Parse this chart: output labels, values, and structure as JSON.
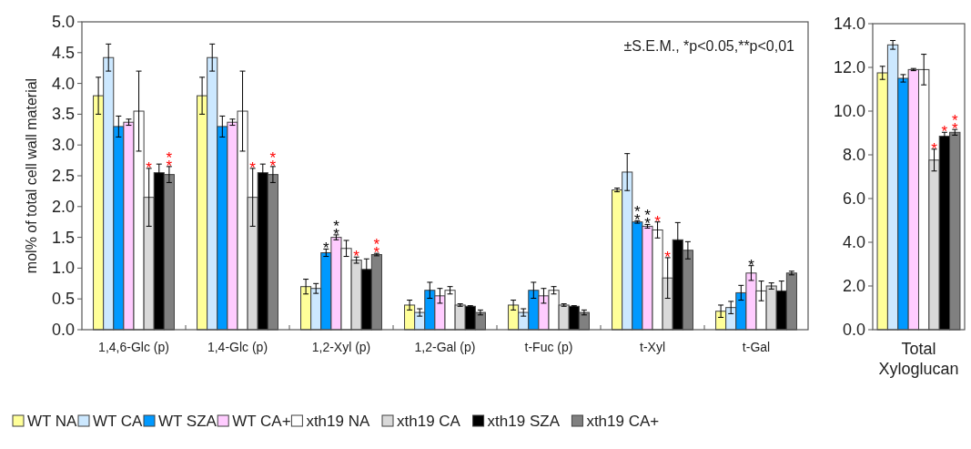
{
  "chart_data": [
    {
      "type": "bar",
      "ylabel": "mol% of total cell wall material",
      "categories": [
        "1,4,6-Glc (p)",
        "1,4-Glc (p)",
        "1,2-Xyl (p)",
        "1,2-Gal (p)",
        "t-Fuc (p)",
        "t-Xyl",
        "t-Gal"
      ],
      "ylim": [
        0,
        5
      ],
      "yticks": [
        {
          "value": 0,
          "label": "0.0"
        },
        {
          "value": 0.5,
          "label": "0.5"
        },
        {
          "value": 1,
          "label": "1.0"
        },
        {
          "value": 1.5,
          "label": "1.5"
        },
        {
          "value": 2,
          "label": "2.0"
        },
        {
          "value": 2.5,
          "label": "2.5"
        },
        {
          "value": 3,
          "label": "3.0"
        },
        {
          "value": 3.5,
          "label": "3.5"
        },
        {
          "value": 4,
          "label": "4.0"
        },
        {
          "value": 4.5,
          "label": "4.5"
        },
        {
          "value": 5,
          "label": "5.0"
        }
      ],
      "legend": "bottom",
      "grid": false,
      "annotations": [
        "±S.E.M., *p<0.05,**p<0,01"
      ],
      "series": [
        {
          "name": "WT NA",
          "color": "#ffff99",
          "values": [
            3.8,
            3.8,
            0.7,
            0.4,
            0.4,
            2.27,
            0.3
          ],
          "errors": [
            0.3,
            0.3,
            0.12,
            0.08,
            0.08,
            0.03,
            0.1
          ],
          "value_labels": [
            null,
            null,
            null,
            null,
            null,
            null,
            null
          ]
        },
        {
          "name": "WT CA",
          "color": "#cce8ff",
          "values": [
            4.42,
            4.42,
            0.67,
            0.28,
            0.28,
            2.56,
            0.36
          ],
          "errors": [
            0.22,
            0.22,
            0.08,
            0.06,
            0.06,
            0.3,
            0.1
          ],
          "value_labels": [
            null,
            null,
            null,
            null,
            null,
            null,
            null
          ]
        },
        {
          "name": "WT SZA",
          "color": "#0099ff",
          "values": [
            3.3,
            3.3,
            1.25,
            0.64,
            0.64,
            1.75,
            0.6
          ],
          "errors": [
            0.17,
            0.17,
            0.06,
            0.13,
            0.13,
            0.02,
            0.12
          ],
          "value_labels": [
            null,
            null,
            "*",
            null,
            null,
            "**",
            null
          ]
        },
        {
          "name": "WT CA+",
          "color": "#ffccff",
          "values": [
            3.37,
            3.37,
            1.5,
            0.55,
            0.55,
            1.68,
            0.92
          ],
          "errors": [
            0.05,
            0.05,
            0.04,
            0.12,
            0.12,
            0.03,
            0.12
          ],
          "value_labels": [
            null,
            null,
            "**",
            null,
            null,
            "**",
            "*"
          ]
        },
        {
          "name": "xth19 NA",
          "color": "#ffffff",
          "values": [
            3.55,
            3.55,
            1.32,
            0.64,
            0.64,
            1.62,
            0.63
          ],
          "errors": [
            0.65,
            0.65,
            0.13,
            0.06,
            0.06,
            0.13,
            0.16
          ],
          "value_labels": [
            null,
            null,
            null,
            null,
            null,
            "*",
            null
          ]
        },
        {
          "name": "xth19 CA",
          "color": "#d9d9d9",
          "values": [
            2.15,
            2.15,
            1.13,
            0.4,
            0.4,
            0.84,
            0.71
          ],
          "errors": [
            0.47,
            0.47,
            0.05,
            0.02,
            0.02,
            0.33,
            0.05
          ],
          "value_labels": [
            "*",
            "*",
            "*",
            null,
            null,
            "*",
            null
          ]
        },
        {
          "name": "xth19 SZA",
          "color": "#000000",
          "values": [
            2.55,
            2.55,
            0.98,
            0.38,
            0.38,
            1.46,
            0.63
          ],
          "errors": [
            0.14,
            0.14,
            0.17,
            0.01,
            0.01,
            0.28,
            0.16
          ],
          "value_labels": [
            null,
            null,
            null,
            null,
            null,
            null,
            null
          ]
        },
        {
          "name": "xth19 CA+",
          "color": "#808080",
          "values": [
            2.52,
            2.52,
            1.22,
            0.28,
            0.28,
            1.29,
            0.92
          ],
          "errors": [
            0.13,
            0.13,
            0.02,
            0.04,
            0.04,
            0.14,
            0.03
          ],
          "value_labels": [
            "**",
            "**",
            "**",
            null,
            null,
            null,
            null
          ]
        }
      ]
    },
    {
      "type": "bar",
      "categories": [
        "Total Xyloglucan"
      ],
      "ylim": [
        0,
        14
      ],
      "yticks": [
        {
          "value": 0,
          "label": "0.0"
        },
        {
          "value": 2,
          "label": "2.0"
        },
        {
          "value": 4,
          "label": "4.0"
        },
        {
          "value": 6,
          "label": "6.0"
        },
        {
          "value": 8,
          "label": "8.0"
        },
        {
          "value": 10,
          "label": "10.0"
        },
        {
          "value": 12,
          "label": "12.0"
        },
        {
          "value": 14,
          "label": "14.0"
        }
      ],
      "grid": false,
      "series": [
        {
          "color": "#ffff99",
          "values": [
            11.75
          ],
          "errors": [
            0.3
          ],
          "value_labels": [
            null
          ]
        },
        {
          "color": "#cce8ff",
          "values": [
            13.03
          ],
          "errors": [
            0.2
          ],
          "value_labels": [
            null
          ]
        },
        {
          "color": "#0099ff",
          "values": [
            11.5
          ],
          "errors": [
            0.17
          ],
          "value_labels": [
            null
          ]
        },
        {
          "color": "#ffccff",
          "values": [
            11.9
          ],
          "errors": [
            0.05
          ],
          "value_labels": [
            null
          ]
        },
        {
          "color": "#ffffff",
          "values": [
            11.9
          ],
          "errors": [
            0.7
          ],
          "value_labels": [
            null
          ]
        },
        {
          "color": "#d9d9d9",
          "values": [
            7.76
          ],
          "errors": [
            0.5
          ],
          "value_labels": [
            "*"
          ]
        },
        {
          "color": "#000000",
          "values": [
            8.85
          ],
          "errors": [
            0.18
          ],
          "value_labels": [
            "*"
          ]
        },
        {
          "color": "#808080",
          "values": [
            9.03
          ],
          "errors": [
            0.13
          ],
          "value_labels": [
            "**"
          ]
        }
      ]
    }
  ]
}
